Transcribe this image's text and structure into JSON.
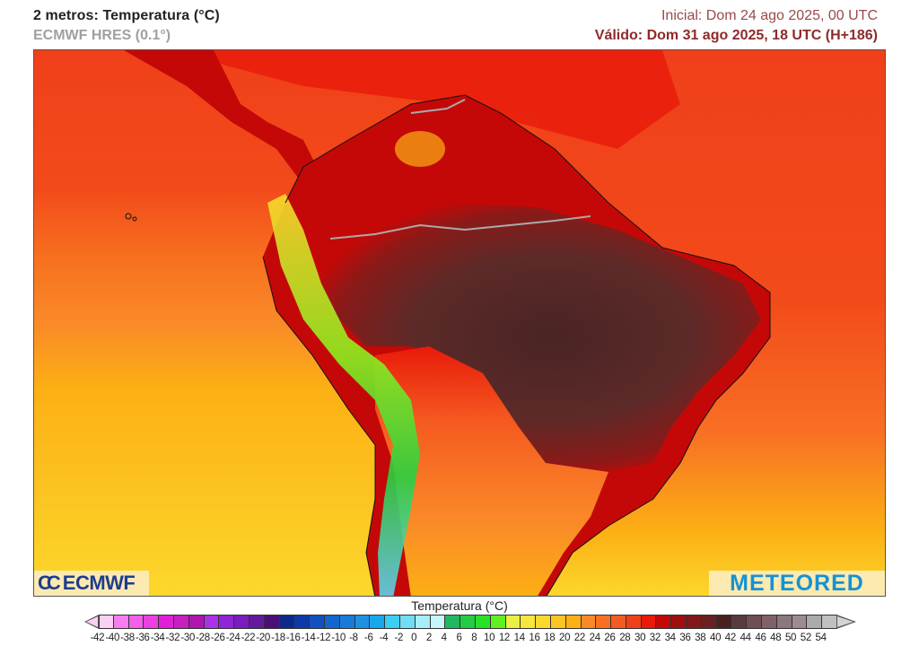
{
  "header": {
    "title": "2 metros: Temperatura (°C)",
    "model": "ECMWF HRES (0.1°)",
    "initial": "Inicial: Dom 24 ago 2025, 00 UTC",
    "valid": "Válido: Dom 31 ago 2025, 18 UTC (H+186)"
  },
  "map": {
    "region": "South America",
    "variable": "2m temperature",
    "logos": {
      "left": "ECMWF",
      "right": "METEORED"
    }
  },
  "colorbar": {
    "title": "Temperatura (°C)",
    "labels": [
      "-42",
      "-40",
      "-38",
      "-36",
      "-34",
      "-32",
      "-30",
      "-28",
      "-26",
      "-24",
      "-22",
      "-20",
      "-18",
      "-16",
      "-14",
      "-12",
      "-10",
      "-8",
      "-6",
      "-4",
      "-2",
      "0",
      "2",
      "4",
      "6",
      "8",
      "10",
      "12",
      "14",
      "16",
      "18",
      "20",
      "22",
      "24",
      "26",
      "28",
      "30",
      "32",
      "34",
      "36",
      "38",
      "40",
      "42",
      "44",
      "46",
      "48",
      "50",
      "52",
      "54"
    ],
    "colors": [
      "#fcd0f5",
      "#f77ef0",
      "#f25fe8",
      "#ec40e0",
      "#e020d6",
      "#c81fc0",
      "#b015b0",
      "#a833e8",
      "#8f25d6",
      "#7a1cc0",
      "#621a9e",
      "#4a1078",
      "#0d2a8a",
      "#0d3aa8",
      "#1150c0",
      "#1466cf",
      "#1a7ad8",
      "#2090e0",
      "#16a8ea",
      "#3ccdf2",
      "#70dcf6",
      "#a6eef8",
      "#c8f6f8",
      "#20b860",
      "#22cc44",
      "#28e028",
      "#60f020",
      "#e8f040",
      "#f8e63c",
      "#fcd82c",
      "#fcc424",
      "#fcb014",
      "#fa8a28",
      "#f87024",
      "#f55a20",
      "#f0401a",
      "#e81a0a",
      "#c40808",
      "#9e1010",
      "#82181a",
      "#6a2020",
      "#4a2020",
      "#5a3a40",
      "#704e54",
      "#7e6268",
      "#8c777c",
      "#9c8c90",
      "#ababab",
      "#c0c0c0"
    ],
    "min": -42,
    "max": 54,
    "step": 2
  }
}
